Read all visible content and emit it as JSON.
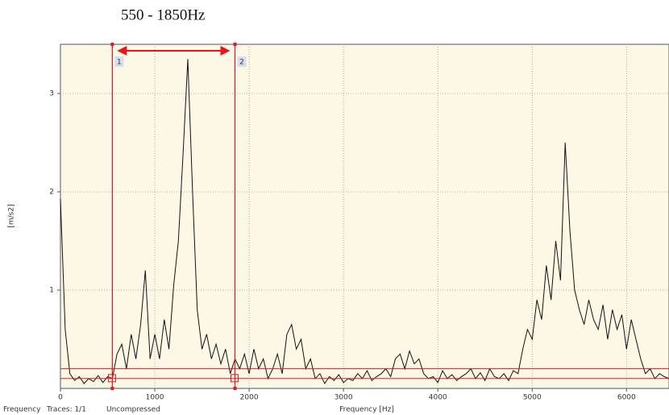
{
  "chart_data": {
    "type": "line",
    "title": "550 - 1850Hz",
    "x_label": "Frequency [Hz]",
    "y_label": "[m/s2]",
    "status": [
      "Frequency",
      "Traces: 1/1",
      "Uncompressed"
    ],
    "color": "#111111",
    "grid": true,
    "xlim": [
      0,
      6450
    ],
    "ylim": [
      0,
      3.5
    ],
    "xticks": [
      0,
      1000,
      2000,
      3000,
      4000,
      5000,
      6000
    ],
    "yticks": [
      1,
      2,
      3
    ],
    "cursors": [
      {
        "label": "1",
        "value": 550
      },
      {
        "label": "2",
        "value": 1850
      }
    ],
    "cursor_color": "#e8141e",
    "thresholds": [
      0.1,
      0.2
    ],
    "x": [
      0,
      50,
      100,
      150,
      200,
      250,
      300,
      350,
      400,
      450,
      500,
      550,
      600,
      650,
      700,
      750,
      800,
      850,
      900,
      950,
      1000,
      1050,
      1100,
      1150,
      1200,
      1250,
      1300,
      1350,
      1400,
      1450,
      1500,
      1550,
      1600,
      1650,
      1700,
      1750,
      1800,
      1850,
      1900,
      1950,
      2000,
      2050,
      2100,
      2150,
      2200,
      2250,
      2300,
      2350,
      2400,
      2450,
      2500,
      2550,
      2600,
      2650,
      2700,
      2750,
      2800,
      2850,
      2900,
      2950,
      3000,
      3050,
      3100,
      3150,
      3200,
      3250,
      3300,
      3350,
      3400,
      3450,
      3500,
      3550,
      3600,
      3650,
      3700,
      3750,
      3800,
      3850,
      3900,
      3950,
      4000,
      4050,
      4100,
      4150,
      4200,
      4250,
      4300,
      4350,
      4400,
      4450,
      4500,
      4550,
      4600,
      4650,
      4700,
      4750,
      4800,
      4850,
      4900,
      4950,
      5000,
      5050,
      5100,
      5150,
      5200,
      5250,
      5300,
      5350,
      5400,
      5450,
      5500,
      5550,
      5600,
      5650,
      5700,
      5750,
      5800,
      5850,
      5900,
      5950,
      6000,
      6050,
      6100,
      6150,
      6200,
      6250,
      6300,
      6350,
      6400,
      6450
    ],
    "values": [
      1.93,
      0.6,
      0.15,
      0.08,
      0.12,
      0.05,
      0.1,
      0.07,
      0.13,
      0.06,
      0.12,
      0.1,
      0.35,
      0.45,
      0.2,
      0.55,
      0.3,
      0.65,
      1.2,
      0.3,
      0.55,
      0.3,
      0.7,
      0.4,
      1.05,
      1.5,
      2.4,
      3.35,
      2.0,
      0.8,
      0.4,
      0.55,
      0.3,
      0.45,
      0.25,
      0.4,
      0.15,
      0.3,
      0.2,
      0.35,
      0.15,
      0.4,
      0.2,
      0.3,
      0.1,
      0.2,
      0.35,
      0.15,
      0.55,
      0.65,
      0.4,
      0.5,
      0.2,
      0.3,
      0.1,
      0.15,
      0.05,
      0.12,
      0.08,
      0.14,
      0.06,
      0.1,
      0.08,
      0.15,
      0.1,
      0.18,
      0.08,
      0.12,
      0.15,
      0.2,
      0.12,
      0.3,
      0.35,
      0.2,
      0.38,
      0.25,
      0.3,
      0.15,
      0.1,
      0.12,
      0.06,
      0.18,
      0.1,
      0.14,
      0.08,
      0.12,
      0.15,
      0.2,
      0.1,
      0.16,
      0.08,
      0.2,
      0.12,
      0.1,
      0.15,
      0.08,
      0.18,
      0.15,
      0.4,
      0.6,
      0.5,
      0.9,
      0.7,
      1.25,
      0.9,
      1.5,
      1.1,
      2.5,
      1.6,
      1.0,
      0.8,
      0.65,
      0.9,
      0.7,
      0.6,
      0.85,
      0.5,
      0.8,
      0.6,
      0.75,
      0.4,
      0.7,
      0.5,
      0.3,
      0.15,
      0.2,
      0.1,
      0.15,
      0.12,
      0.1
    ]
  }
}
